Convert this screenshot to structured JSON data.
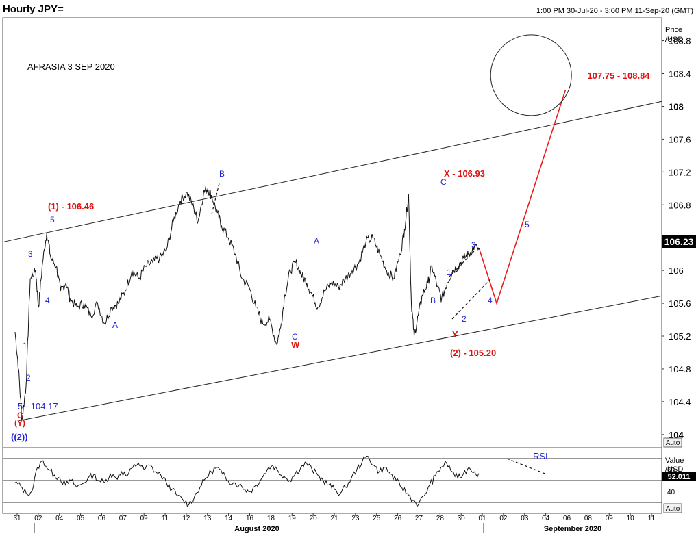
{
  "header": {
    "title": "Hourly JPY=",
    "date_range": "1:00 PM 30-Jul-20 - 3:00 PM 11-Sep-20 (GMT)"
  },
  "watermark": "AFRASIA 3 SEP 2020",
  "price_axis": {
    "unit_label_1": "Price",
    "unit_label_2": "/USD",
    "ticks": [
      "108.8",
      "108.4",
      "108",
      "107.6",
      "107.2",
      "106.8",
      "106.4",
      "106",
      "105.6",
      "105.2",
      "104.8",
      "104.4",
      "104"
    ],
    "last_price": "106.23",
    "auto_label": "Auto"
  },
  "rsi_axis": {
    "unit_label_1": "Value",
    "unit_label_2": "/USD",
    "ticks": [
      "60",
      "40"
    ],
    "last_value": "52.011",
    "auto_label": "Auto",
    "label": "RSI"
  },
  "time_axis": {
    "day_ticks": [
      "31",
      "02",
      "04",
      "05",
      "06",
      "07",
      "09",
      "11",
      "12",
      "13",
      "14",
      "16",
      "18",
      "19",
      "20",
      "21",
      "23",
      "25",
      "26",
      "27",
      "28",
      "30",
      "01",
      "02",
      "03",
      "04",
      "06",
      "08",
      "09",
      "10",
      "11"
    ],
    "month_labels": [
      "August 2020",
      "September 2020"
    ]
  },
  "annotations": {
    "target_zone": "107.75 - 108.84",
    "w1_high": "(1) - 106.46",
    "x_high": "X - 106.93",
    "w2_low": "(2) - 105.20",
    "start_low": "5 - 104.17",
    "wave_labels_blue": [
      "1",
      "2",
      "3",
      "4",
      "5",
      "A",
      "B",
      "C",
      "A",
      "B",
      "C",
      "1",
      "2",
      "3",
      "4",
      "5"
    ],
    "wave_labels_red": [
      "C",
      "(Y)",
      "W",
      "Y"
    ],
    "big_label": "((2))"
  },
  "colors": {
    "price_line": "#111111",
    "wave_blue": "#1f1fd6",
    "wave_red": "#e01010",
    "projection": "#e81c1c",
    "channel": "#222222"
  },
  "chart_data": {
    "type": "line",
    "title": "Hourly JPY=",
    "ylabel": "Price /USD",
    "ylim": [
      103.84,
      109.08
    ],
    "x_range_index": [
      0,
      47
    ],
    "x_index_meaning": "trading-day index from 31 Jul (0) to 11 Sep (47)",
    "price_path": [
      [
        0.0,
        105.25
      ],
      [
        0.25,
        104.8
      ],
      [
        0.5,
        104.17
      ],
      [
        0.8,
        104.6
      ],
      [
        1.1,
        105.9
      ],
      [
        1.5,
        106.0
      ],
      [
        1.7,
        105.55
      ],
      [
        2.0,
        106.1
      ],
      [
        2.3,
        106.46
      ],
      [
        2.6,
        106.15
      ],
      [
        3.0,
        106.05
      ],
      [
        3.3,
        105.75
      ],
      [
        3.7,
        105.85
      ],
      [
        4.0,
        105.65
      ],
      [
        4.5,
        105.55
      ],
      [
        5.0,
        105.6
      ],
      [
        5.5,
        105.45
      ],
      [
        6.0,
        105.6
      ],
      [
        6.5,
        105.35
      ],
      [
        7.0,
        105.55
      ],
      [
        7.5,
        105.6
      ],
      [
        8.0,
        105.75
      ],
      [
        8.5,
        106.0
      ],
      [
        9.0,
        105.9
      ],
      [
        9.5,
        106.05
      ],
      [
        10.0,
        106.1
      ],
      [
        10.5,
        106.15
      ],
      [
        11.0,
        106.25
      ],
      [
        11.5,
        106.6
      ],
      [
        12.0,
        106.85
      ],
      [
        12.5,
        106.95
      ],
      [
        13.0,
        106.75
      ],
      [
        13.3,
        106.6
      ],
      [
        13.7,
        106.95
      ],
      [
        14.0,
        107.0
      ],
      [
        14.3,
        106.9
      ],
      [
        14.7,
        106.7
      ],
      [
        15.0,
        106.55
      ],
      [
        15.5,
        106.4
      ],
      [
        16.0,
        106.2
      ],
      [
        16.5,
        105.9
      ],
      [
        17.0,
        105.8
      ],
      [
        17.5,
        105.55
      ],
      [
        18.0,
        105.35
      ],
      [
        18.5,
        105.4
      ],
      [
        19.0,
        105.1
      ],
      [
        19.3,
        105.3
      ],
      [
        19.6,
        105.7
      ],
      [
        20.0,
        106.0
      ],
      [
        20.4,
        106.1
      ],
      [
        20.8,
        105.95
      ],
      [
        21.2,
        105.85
      ],
      [
        21.6,
        105.7
      ],
      [
        22.0,
        105.55
      ],
      [
        22.5,
        105.75
      ],
      [
        23.0,
        105.85
      ],
      [
        23.5,
        105.8
      ],
      [
        24.0,
        105.9
      ],
      [
        24.5,
        106.0
      ],
      [
        25.0,
        106.1
      ],
      [
        25.5,
        106.35
      ],
      [
        26.0,
        106.4
      ],
      [
        26.5,
        106.2
      ],
      [
        27.0,
        106.0
      ],
      [
        27.5,
        105.9
      ],
      [
        28.0,
        106.2
      ],
      [
        28.3,
        106.5
      ],
      [
        28.6,
        106.93
      ],
      [
        28.8,
        105.6
      ],
      [
        29.0,
        105.2
      ],
      [
        29.3,
        105.45
      ],
      [
        29.6,
        105.7
      ],
      [
        30.0,
        105.85
      ],
      [
        30.3,
        106.05
      ],
      [
        30.7,
        105.8
      ],
      [
        31.0,
        105.65
      ],
      [
        31.4,
        105.85
      ],
      [
        31.8,
        106.0
      ],
      [
        32.2,
        106.05
      ],
      [
        32.6,
        106.15
      ],
      [
        33.0,
        106.2
      ],
      [
        33.4,
        106.3
      ],
      [
        33.8,
        106.23
      ]
    ],
    "projection": [
      [
        33.8,
        106.23
      ],
      [
        35.0,
        105.6
      ],
      [
        40.0,
        108.2
      ]
    ],
    "channel_upper": [
      [
        -0.8,
        106.35
      ],
      [
        47.0,
        108.06
      ]
    ],
    "channel_lower": [
      [
        0.3,
        104.17
      ],
      [
        47.0,
        105.69
      ]
    ],
    "target_circle": {
      "x": 37.5,
      "y": 108.38
    },
    "rsi": {
      "ylim": [
        20,
        80
      ],
      "levels": [
        70,
        50,
        30
      ],
      "values": [
        48,
        45,
        38,
        40,
        62,
        68,
        60,
        55,
        52,
        46,
        50,
        44,
        47,
        52,
        55,
        50,
        48,
        56,
        52,
        58,
        54,
        62,
        66,
        60,
        64,
        58,
        55,
        48,
        42,
        36,
        32,
        28,
        35,
        44,
        52,
        58,
        62,
        56,
        50,
        48,
        46,
        42,
        40,
        46,
        52,
        60,
        64,
        58,
        54,
        50,
        56,
        62,
        66,
        60,
        55,
        50,
        46,
        42,
        38,
        44,
        52,
        60,
        68,
        72,
        64,
        58,
        62,
        56,
        50,
        44,
        38,
        32,
        28,
        36,
        46,
        54,
        62,
        66,
        58,
        52,
        56,
        62,
        58,
        54
      ]
    }
  }
}
